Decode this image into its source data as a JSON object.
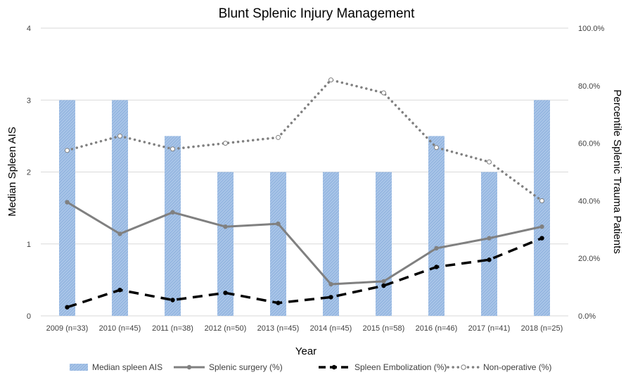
{
  "chart_data": {
    "type": "bar",
    "title": "Blunt Splenic Injury Management",
    "xlabel": "Year",
    "ylabel": "Median Spleen AIS",
    "y2label": "Percentile Splenic Trauma Patients",
    "ylim": [
      0,
      4
    ],
    "y2lim": [
      0,
      100
    ],
    "yticks": [
      "0",
      "1",
      "2",
      "3",
      "4"
    ],
    "y2ticks": [
      "0.0%",
      "20.0%",
      "40.0%",
      "60.0%",
      "80.0%",
      "100.0%"
    ],
    "grid": true,
    "legend_position": "bottom",
    "categories": [
      "2009 (n=33)",
      "2010 (n=45)",
      "2011 (n=38)",
      "2012 (n=50)",
      "2013 (n=45)",
      "2014 (n=45)",
      "2015 (n=58)",
      "2016 (n=46)",
      "2017 (n=41)",
      "2018 (n=25)"
    ],
    "series": [
      {
        "name": "Median spleen AIS",
        "type": "bar",
        "axis": "left",
        "color": "#8fb3de",
        "values": [
          3,
          3,
          2.5,
          2,
          2,
          2,
          2,
          2.5,
          2,
          3
        ]
      },
      {
        "name": "Splenic surgery (%)",
        "type": "line",
        "axis": "right",
        "color": "#808080",
        "style": "solid",
        "values": [
          39.5,
          28.5,
          36,
          31,
          32,
          11,
          12,
          23.5,
          27,
          31
        ]
      },
      {
        "name": "Spleen Embolization (%)",
        "type": "line",
        "axis": "right",
        "color": "#000000",
        "style": "dashed",
        "values": [
          3,
          9,
          5.5,
          8,
          4.5,
          6.5,
          10.5,
          17,
          19.5,
          27
        ]
      },
      {
        "name": "Non-operative (%)",
        "type": "line",
        "axis": "right",
        "color": "#808080",
        "style": "dotted",
        "values": [
          57.5,
          62.5,
          58,
          60,
          62,
          82,
          77.5,
          58.5,
          53.5,
          40
        ]
      }
    ]
  }
}
